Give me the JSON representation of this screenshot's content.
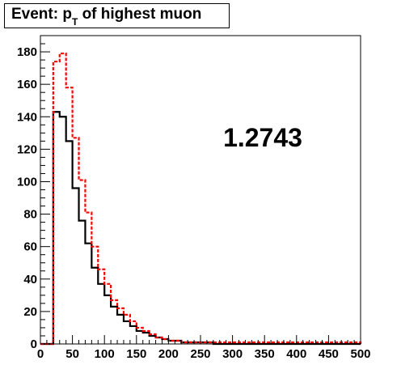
{
  "chart_data": {
    "type": "histogram",
    "title": {
      "prefix": "Event: p",
      "subscript": "T",
      "suffix": " of highest muon"
    },
    "annotation": "1.2743",
    "xlim": [
      0,
      500
    ],
    "ylim": [
      0,
      190
    ],
    "x_ticks": [
      0,
      50,
      100,
      150,
      200,
      250,
      300,
      350,
      400,
      450,
      500
    ],
    "y_ticks": [
      0,
      20,
      40,
      60,
      80,
      100,
      120,
      140,
      160,
      180
    ],
    "bin_edges": [
      0,
      10,
      20,
      30,
      40,
      50,
      60,
      70,
      80,
      90,
      100,
      110,
      120,
      130,
      140,
      150,
      160,
      170,
      180,
      190,
      200,
      210,
      220,
      230,
      240,
      250,
      260,
      270,
      280,
      290,
      300,
      310,
      320,
      330,
      340,
      350,
      360,
      370,
      380,
      390,
      400,
      410,
      420,
      430,
      440,
      450,
      460,
      470,
      480,
      490,
      500
    ],
    "series": [
      {
        "color": "#000000",
        "style": "solid",
        "values": [
          0,
          0,
          143,
          140,
          125,
          96,
          76,
          62,
          47,
          37,
          30,
          23,
          18,
          14,
          11,
          8,
          7,
          5,
          4,
          3,
          2,
          2,
          1,
          1,
          1,
          1,
          1,
          0,
          0,
          0,
          0,
          0,
          0,
          0,
          0,
          0,
          0,
          0,
          0,
          0,
          0,
          0,
          0,
          0,
          0,
          0,
          0,
          0,
          0,
          0
        ]
      },
      {
        "color": "#ff0000",
        "style": "dashed",
        "values": [
          0,
          0,
          174,
          179,
          158,
          127,
          101,
          81,
          60,
          46,
          37,
          27,
          22,
          18,
          14,
          10,
          8,
          6,
          4,
          3,
          2,
          2,
          1,
          1,
          1,
          1,
          1,
          1,
          1,
          1,
          1,
          1,
          1,
          1,
          1,
          1,
          1,
          1,
          1,
          1,
          1,
          1,
          1,
          1,
          1,
          1,
          1,
          1,
          1,
          1
        ]
      }
    ]
  }
}
